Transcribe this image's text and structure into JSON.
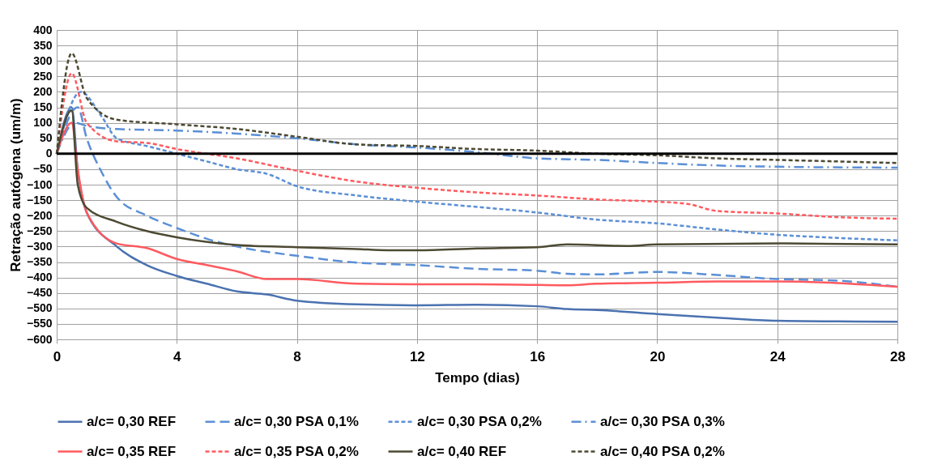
{
  "chart_data": {
    "type": "line",
    "xlabel": "Tempo (dias)",
    "ylabel": "Retração autógena (um/m)",
    "xlim": [
      0,
      28
    ],
    "xticks": [
      0,
      4,
      8,
      12,
      16,
      20,
      24,
      28
    ],
    "ylim": [
      -600,
      400
    ],
    "yticks": [
      -600,
      -550,
      -500,
      -450,
      -400,
      -350,
      -300,
      -250,
      -200,
      -150,
      -100,
      -50,
      0,
      50,
      100,
      150,
      200,
      250,
      300,
      350,
      400
    ],
    "grid": true,
    "legend": "bottom",
    "marker": "none",
    "ref_lines": [
      {
        "axis": "y",
        "value": 0,
        "color": "#000000"
      }
    ],
    "series": [
      {
        "name": "a/c= 0,30 REF",
        "color": "#4a72b0",
        "line_style": "solid",
        "x": [
          0,
          0.5,
          0.7,
          1,
          2,
          3,
          4,
          5,
          6,
          7,
          8,
          10,
          12,
          14,
          16,
          17,
          18,
          20,
          22,
          24,
          26,
          28
        ],
        "values": [
          0,
          150,
          -50,
          -190,
          -300,
          -360,
          -395,
          -420,
          -445,
          -455,
          -475,
          -487,
          -490,
          -488,
          -493,
          -502,
          -505,
          -518,
          -530,
          -540,
          -542,
          -543
        ]
      },
      {
        "name": "a/c= 0,30 PSA 0,1%",
        "color": "#5b8fd6",
        "line_style": "dashed",
        "x": [
          0,
          0.7,
          1,
          1.5,
          2,
          3,
          4,
          5,
          6,
          8,
          10,
          12,
          14,
          16,
          17,
          18,
          20,
          22,
          24,
          26,
          28
        ],
        "values": [
          0,
          150,
          50,
          -60,
          -140,
          -200,
          -240,
          -275,
          -300,
          -330,
          -352,
          -360,
          -372,
          -378,
          -388,
          -390,
          -382,
          -392,
          -405,
          -410,
          -430
        ]
      },
      {
        "name": "a/c= 0,30 PSA 0,2%",
        "color": "#5b8fd6",
        "line_style": "dotted",
        "x": [
          0,
          0.8,
          1.5,
          2,
          3,
          4,
          5,
          6,
          7,
          8,
          10,
          12,
          14,
          16,
          18,
          20,
          22,
          24,
          26,
          28
        ],
        "values": [
          0,
          200,
          120,
          50,
          25,
          0,
          -25,
          -50,
          -65,
          -105,
          -135,
          -155,
          -172,
          -190,
          -213,
          -225,
          -245,
          -262,
          -272,
          -280
        ]
      },
      {
        "name": "a/c= 0,30 PSA 0,3%",
        "color": "#5b8fd6",
        "line_style": "dashdot",
        "x": [
          0,
          0.6,
          1,
          2,
          4,
          6,
          8,
          10,
          12,
          14,
          16,
          18,
          20,
          22,
          24,
          28
        ],
        "values": [
          0,
          100,
          90,
          80,
          75,
          65,
          50,
          30,
          20,
          5,
          -15,
          -20,
          -30,
          -38,
          -42,
          -45
        ]
      },
      {
        "name": "a/c= 0,35 REF",
        "color": "#ff5a5f",
        "line_style": "solid",
        "x": [
          0,
          0.5,
          0.7,
          1,
          2,
          3,
          4,
          5,
          6,
          7,
          8,
          10,
          12,
          14,
          16,
          17,
          18,
          20,
          22,
          24,
          26,
          28
        ],
        "values": [
          0,
          100,
          -50,
          -190,
          -290,
          -305,
          -340,
          -360,
          -380,
          -405,
          -405,
          -420,
          -422,
          -422,
          -424,
          -425,
          -420,
          -417,
          -413,
          -413,
          -418,
          -430
        ]
      },
      {
        "name": "a/c= 0,35 PSA 0,2%",
        "color": "#ff5a5f",
        "line_style": "dotted",
        "x": [
          0,
          0.5,
          1,
          2,
          3,
          4,
          6,
          8,
          10,
          12,
          14,
          16,
          18,
          20,
          21,
          22,
          24,
          26,
          28
        ],
        "values": [
          0,
          260,
          100,
          40,
          35,
          15,
          -15,
          -55,
          -90,
          -110,
          -125,
          -135,
          -148,
          -155,
          -162,
          -185,
          -193,
          -205,
          -210
        ]
      },
      {
        "name": "a/c= 0,40 REF",
        "color": "#4d4a33",
        "line_style": "solid",
        "x": [
          0,
          0.5,
          0.7,
          1,
          2,
          3,
          4,
          6,
          8,
          10,
          11,
          12,
          14,
          16,
          17,
          19,
          20,
          24,
          28
        ],
        "values": [
          0,
          140,
          -100,
          -175,
          -220,
          -250,
          -270,
          -295,
          -302,
          -308,
          -312,
          -312,
          -306,
          -302,
          -293,
          -298,
          -293,
          -290,
          -293
        ]
      },
      {
        "name": "a/c= 0,40 PSA 0,2%",
        "color": "#4d4a33",
        "line_style": "dotted",
        "x": [
          0,
          0.5,
          1,
          2,
          4,
          6,
          8,
          10,
          12,
          14,
          16,
          18,
          20,
          22,
          24,
          28
        ],
        "values": [
          0,
          325,
          180,
          110,
          95,
          80,
          55,
          30,
          25,
          15,
          10,
          0,
          -5,
          -15,
          -20,
          -30
        ]
      }
    ]
  }
}
